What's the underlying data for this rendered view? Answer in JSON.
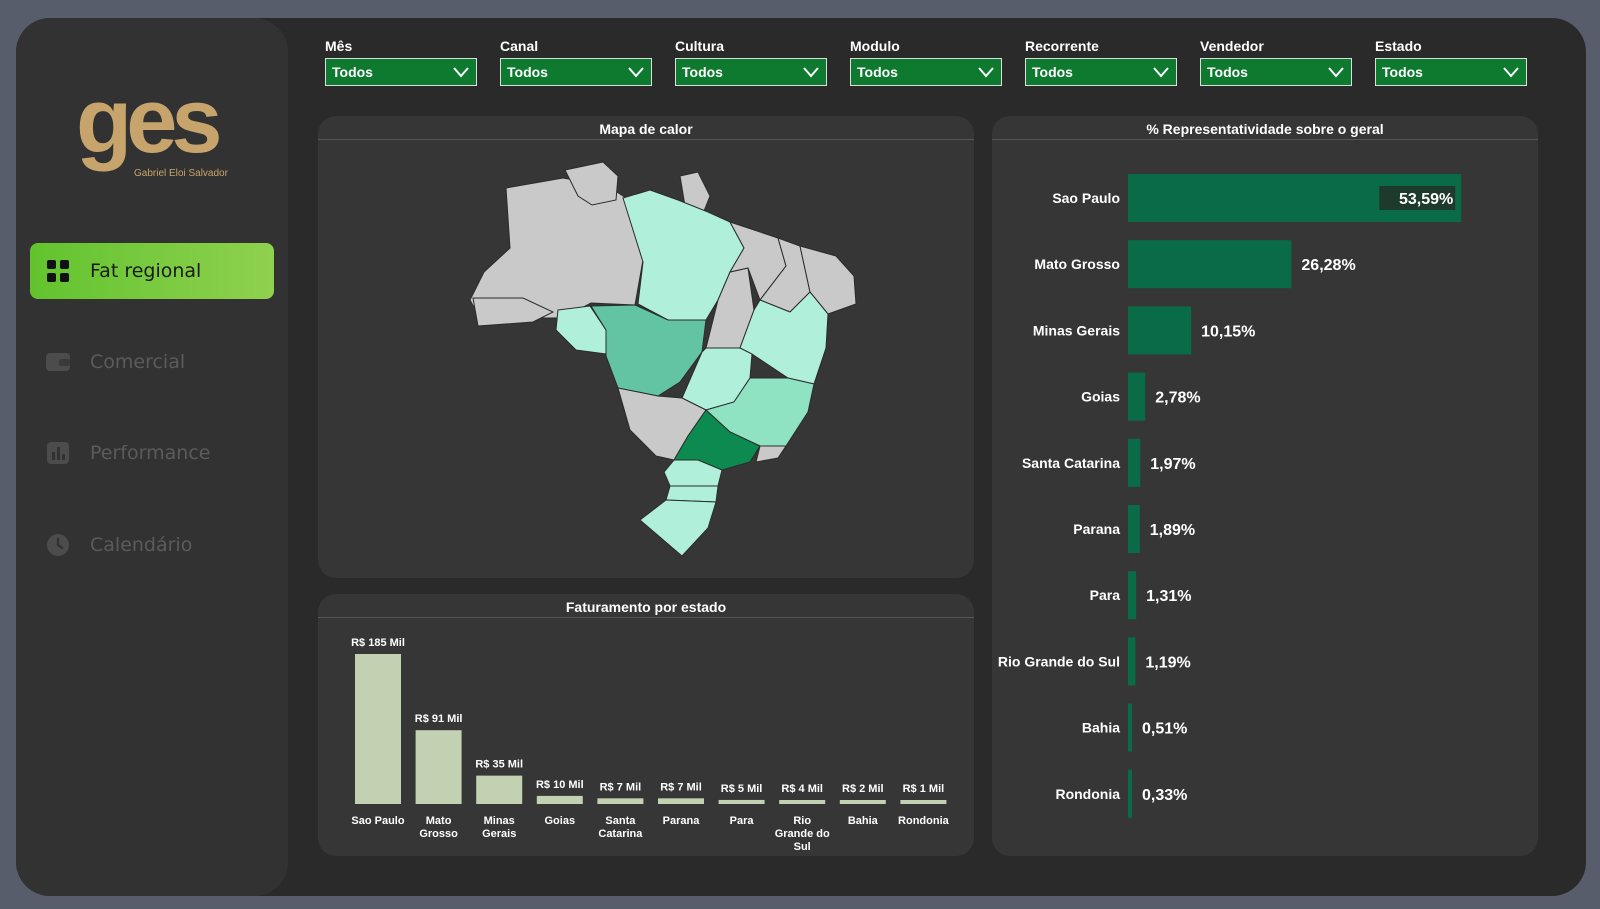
{
  "brand": {
    "logo_text": "ges",
    "logo_subtitle": "Gabriel Eloi Salvador",
    "accent": "#c6a46b"
  },
  "nav": {
    "items": [
      {
        "label": "Fat regional",
        "icon": "grid-icon",
        "active": true
      },
      {
        "label": "Comercial",
        "icon": "wallet-icon",
        "active": false
      },
      {
        "label": "Performance",
        "icon": "bar-chart-icon",
        "active": false
      },
      {
        "label": "Calendário",
        "icon": "clock-icon",
        "active": false
      }
    ]
  },
  "filters": [
    {
      "label": "Mês",
      "value": "Todos"
    },
    {
      "label": "Canal",
      "value": "Todos"
    },
    {
      "label": "Cultura",
      "value": "Todos"
    },
    {
      "label": "Modulo",
      "value": "Todos"
    },
    {
      "label": "Recorrente",
      "value": "Todos"
    },
    {
      "label": "Vendedor",
      "value": "Todos"
    },
    {
      "label": "Estado",
      "value": "Todos"
    }
  ],
  "map": {
    "title": "Mapa de calor",
    "colors": {
      "none": "#c9c9c9",
      "low": "#b0f0da",
      "mid": "#8fe3c2",
      "high": "#62c4a2",
      "top": "#0c8a50"
    }
  },
  "chart_data": [
    {
      "type": "bar",
      "orientation": "horizontal",
      "title": "% Representatividade sobre o geral",
      "categories": [
        "Sao Paulo",
        "Mato Grosso",
        "Minas Gerais",
        "Goias",
        "Santa Catarina",
        "Parana",
        "Para",
        "Rio Grande do Sul",
        "Bahia",
        "Rondonia"
      ],
      "values": [
        53.59,
        26.28,
        10.15,
        2.78,
        1.97,
        1.89,
        1.31,
        1.19,
        0.51,
        0.33
      ],
      "labels": [
        "53,59%",
        "26,28%",
        "10,15%",
        "2,78%",
        "1,97%",
        "1,89%",
        "1,31%",
        "1,19%",
        "0,51%",
        "0,33%"
      ],
      "xlim": [
        0,
        55
      ],
      "color": "#0a6b48"
    },
    {
      "type": "bar",
      "title": "Faturamento por estado",
      "categories": [
        "Sao Paulo",
        "Mato Grosso",
        "Minas Gerais",
        "Goias",
        "Santa Catarina",
        "Parana",
        "Para",
        "Rio Grande do Sul",
        "Bahia",
        "Rondonia"
      ],
      "values": [
        185,
        91,
        35,
        10,
        7,
        7,
        5,
        4,
        2,
        1
      ],
      "labels": [
        "R$ 185 Mil",
        "R$ 91 Mil",
        "R$ 35 Mil",
        "R$ 10 Mil",
        "R$ 7 Mil",
        "R$ 7 Mil",
        "R$ 5 Mil",
        "R$ 4 Mil",
        "R$ 2 Mil",
        "R$ 1 Mil"
      ],
      "category_lines": [
        [
          "Sao Paulo"
        ],
        [
          "Mato",
          "Grosso"
        ],
        [
          "Minas",
          "Gerais"
        ],
        [
          "Goias"
        ],
        [
          "Santa",
          "Catarina"
        ],
        [
          "Parana"
        ],
        [
          "Para"
        ],
        [
          "Rio",
          "Grande do",
          "Sul"
        ],
        [
          "Bahia"
        ],
        [
          "Rondonia"
        ]
      ],
      "ylim": [
        0,
        185
      ],
      "color": "#c2d1b2"
    }
  ]
}
